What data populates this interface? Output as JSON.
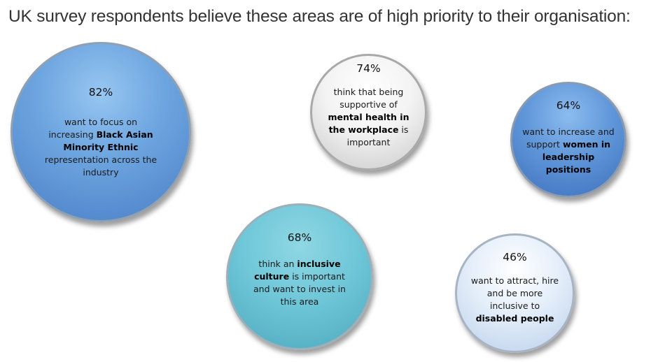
{
  "title": "UK survey respondents believe these areas are of high priority to their organisation:",
  "bubbles": [
    {
      "percent": "82%",
      "pre": "want to focus on increasing ",
      "bold": "Black Asian Minority Ethnic",
      "post": " representation across the industry",
      "color": "#6ea6e0"
    },
    {
      "percent": "74%",
      "pre": "think that being supportive of ",
      "bold": "mental health in the workplace",
      "post": " is important",
      "color": "#f3f3f3"
    },
    {
      "percent": "64%",
      "pre": "want to increase and support ",
      "bold": "women in leadership positions",
      "post": "",
      "color": "#5f96d9"
    },
    {
      "percent": "68%",
      "pre": "think an ",
      "bold": "inclusive culture",
      "post": " is important and want to invest in this area",
      "color": "#6fc7d8"
    },
    {
      "percent": "46%",
      "pre": "want to attract, hire and be more inclusive to ",
      "bold": "disabled people",
      "post": "",
      "color": "#e4eefa"
    }
  ]
}
